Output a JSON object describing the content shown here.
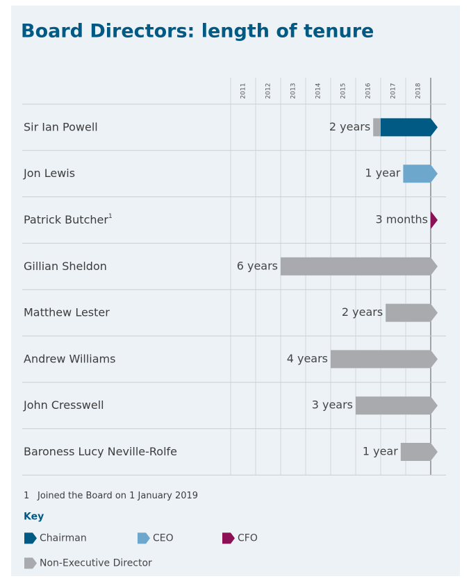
{
  "chart_data": {
    "type": "timeline",
    "title": "Board Directors: length of tenure",
    "xlim": [
      2011,
      2019
    ],
    "xticks": [
      2011,
      2012,
      2013,
      2014,
      2015,
      2016,
      2017,
      2018
    ],
    "rows": [
      {
        "name": "Sir Ian Powell",
        "label": "2 years",
        "segments": [
          {
            "start": 2016.7,
            "color": "#a8aaad"
          },
          {
            "start": 2017.0,
            "color": "#005a84"
          }
        ]
      },
      {
        "name": "Jon Lewis",
        "label": "1 year",
        "segments": [
          {
            "start": 2017.9,
            "color": "#6ea7cc"
          }
        ]
      },
      {
        "name": "Patrick Butcher",
        "sup": "1",
        "label": "3 months",
        "segments": [
          {
            "start": 2019.0,
            "color": "#8c1154"
          }
        ]
      },
      {
        "name": "Gillian Sheldon",
        "label": "6 years",
        "segments": [
          {
            "start": 2013.0,
            "color": "#a8aaad"
          }
        ]
      },
      {
        "name": "Matthew Lester",
        "label": "2 years",
        "segments": [
          {
            "start": 2017.2,
            "color": "#a8aaad"
          }
        ]
      },
      {
        "name": "Andrew Williams",
        "label": "4 years",
        "segments": [
          {
            "start": 2015.0,
            "color": "#a8aaad"
          }
        ]
      },
      {
        "name": "John Cresswell",
        "label": "3 years",
        "segments": [
          {
            "start": 2016.0,
            "color": "#a8aaad"
          }
        ]
      },
      {
        "name": "Baroness Lucy Neville-Rolfe",
        "label": "1 year",
        "segments": [
          {
            "start": 2017.8,
            "color": "#a8aaad"
          }
        ]
      }
    ],
    "footnote": {
      "marker": "1",
      "text": "Joined the Board on 1 January 2019"
    },
    "legend_title": "Key",
    "legend": [
      {
        "name": "Chairman",
        "color": "#005a84"
      },
      {
        "name": "CEO",
        "color": "#6ea7cc"
      },
      {
        "name": "CFO",
        "color": "#8c1154"
      },
      {
        "name": "Non-Executive Director",
        "color": "#a8aaad"
      }
    ]
  }
}
